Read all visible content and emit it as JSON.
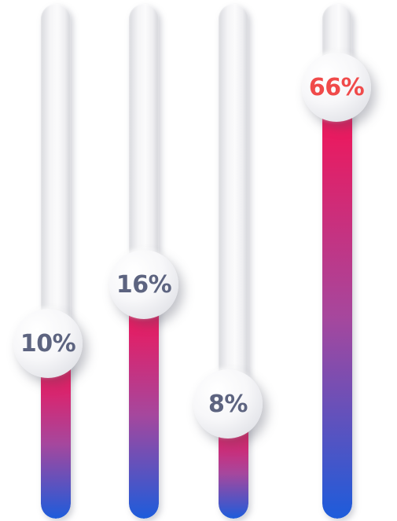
{
  "colors": {
    "fill_top": "#f0165a",
    "fill_mid": "#a6479d",
    "fill_bottom": "#1d5cdb",
    "label_default": "#5d6480",
    "label_highlight": "#f04a4a"
  },
  "sliders": [
    {
      "label": "10%",
      "value": 0.1,
      "highlight": false
    },
    {
      "label": "16%",
      "value": 0.16,
      "highlight": false
    },
    {
      "label": "8%",
      "value": 0.08,
      "highlight": false
    },
    {
      "label": "66%",
      "value": 0.66,
      "highlight": true
    }
  ]
}
